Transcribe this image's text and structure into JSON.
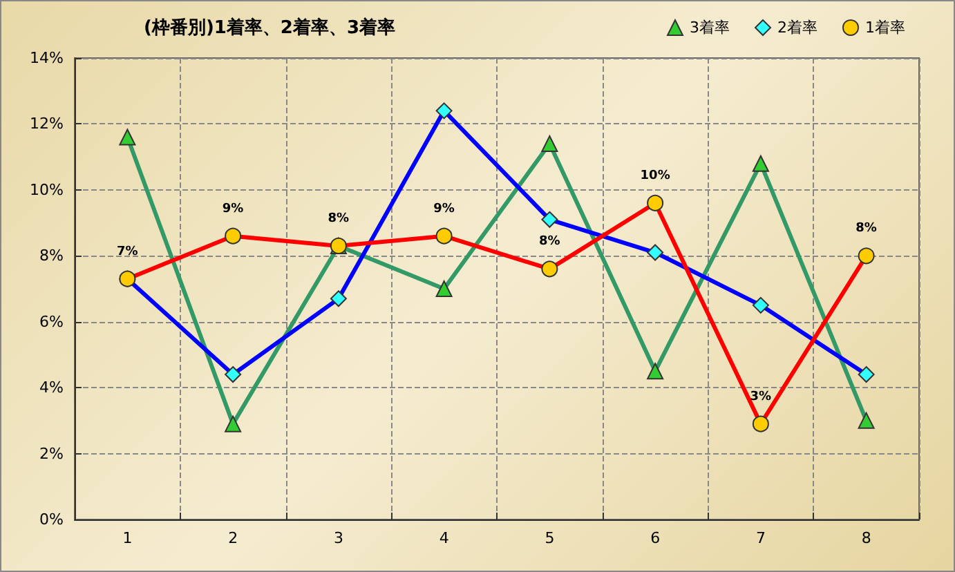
{
  "chart_data": {
    "type": "line",
    "title": "(枠番別)1着率、2着率、3着率",
    "categories": [
      "1",
      "2",
      "3",
      "4",
      "5",
      "6",
      "7",
      "8"
    ],
    "series": [
      {
        "name": "3着率",
        "color": "#339966",
        "marker": "triangle",
        "values": [
          11.6,
          2.9,
          8.3,
          7.0,
          11.4,
          4.5,
          10.8,
          3.0
        ]
      },
      {
        "name": "2着率",
        "color": "#0000ff",
        "marker": "diamond",
        "values": [
          7.3,
          4.4,
          6.7,
          12.4,
          9.1,
          8.1,
          6.5,
          4.4
        ]
      },
      {
        "name": "1着率",
        "color": "#ff0000",
        "marker": "circle",
        "values": [
          7.3,
          8.6,
          8.3,
          8.6,
          7.6,
          9.6,
          2.9,
          8.0
        ],
        "value_labels": [
          "7%",
          "9%",
          "8%",
          "9%",
          "8%",
          "10%",
          "3%",
          "8%"
        ]
      }
    ],
    "ylim": [
      0,
      14
    ],
    "yticks": [
      {
        "value": 0,
        "label": "0%"
      },
      {
        "value": 2,
        "label": "2%"
      },
      {
        "value": 4,
        "label": "4%"
      },
      {
        "value": 6,
        "label": "6%"
      },
      {
        "value": 8,
        "label": "8%"
      },
      {
        "value": 10,
        "label": "10%"
      },
      {
        "value": 12,
        "label": "12%"
      },
      {
        "value": 14,
        "label": "14%"
      }
    ],
    "grid": true,
    "legend": "top right",
    "line_style": "solid"
  }
}
